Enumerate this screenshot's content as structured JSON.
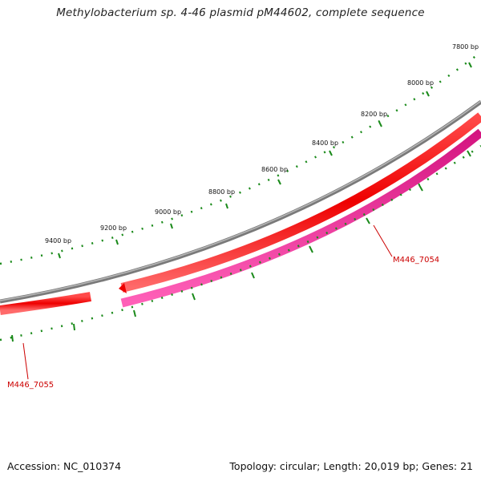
{
  "title": "Methylobacterium sp. 4-46 plasmid pM44602, complete sequence",
  "footer": {
    "accession": "Accession: NC_010374",
    "summary": "Topology: circular; Length: 20,019 bp; Genes: 21"
  },
  "scale_labels": [
    "7800 bp",
    "8000 bp",
    "8200 bp",
    "8400 bp",
    "8600 bp",
    "8800 bp",
    "9000 bp",
    "9200 bp",
    "9400 bp"
  ],
  "genes": [
    {
      "name": "M446_7054",
      "strand": "forward"
    },
    {
      "name": "M446_7055",
      "strand": "reverse"
    }
  ],
  "colors": {
    "backbone": "#8a8a8a",
    "cds": "#ff0000",
    "gene": "#e0208a",
    "tick": "#1a8a1a",
    "gene_label": "#cc0000"
  }
}
